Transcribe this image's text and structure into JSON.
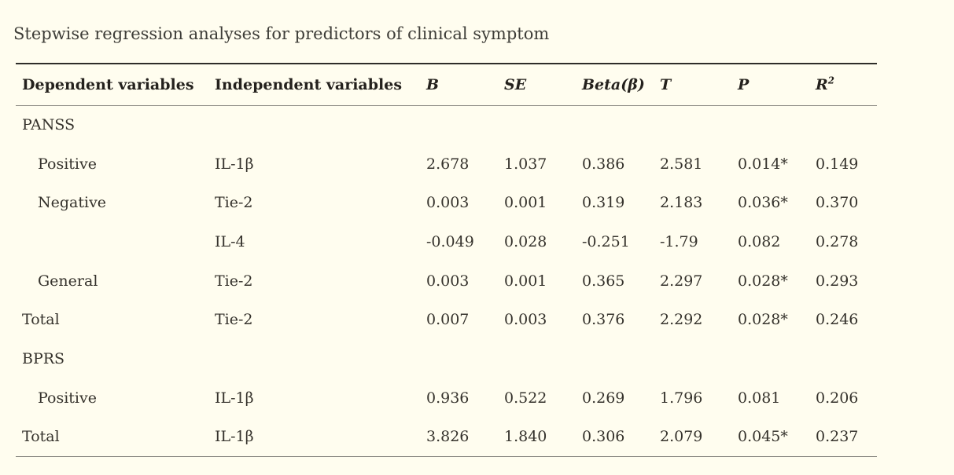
{
  "page": {
    "caption": "Stepwise regression analyses for predictors of clinical symptom",
    "colors": {
      "background": "#fffdef",
      "caption_text": "#3e3d38",
      "header_text": "#24211d",
      "body_text": "#35322c",
      "rule_top": "#2e2d29",
      "rule_mid": "#918f88",
      "rule_bottom": "#8b8a83"
    }
  },
  "table": {
    "columns": {
      "dependent": "Dependent variables",
      "independent": "Independent variables",
      "b": "B",
      "se": "SE",
      "beta": "Beta(β)",
      "t": "T",
      "p": "P",
      "r2_base": "R",
      "r2_sup": "2"
    },
    "rows": [
      {
        "dependent": "PANSS",
        "independent": "",
        "b": "",
        "se": "",
        "beta": "",
        "t": "",
        "p": "",
        "r2": ""
      },
      {
        "dependent": "Positive",
        "independent": "IL-1β",
        "b": "2.678",
        "se": "1.037",
        "beta": "0.386",
        "t": "2.581",
        "p": "0.014*",
        "r2": "0.149"
      },
      {
        "dependent": "Negative",
        "independent": "Tie-2",
        "b": "0.003",
        "se": "0.001",
        "beta": "0.319",
        "t": "2.183",
        "p": "0.036*",
        "r2": "0.370"
      },
      {
        "dependent": "",
        "independent": "IL-4",
        "b": "-0.049",
        "se": "0.028",
        "beta": "-0.251",
        "t": "-1.79",
        "p": "0.082",
        "r2": "0.278"
      },
      {
        "dependent": "General",
        "independent": "Tie-2",
        "b": "0.003",
        "se": "0.001",
        "beta": "0.365",
        "t": "2.297",
        "p": "0.028*",
        "r2": "0.293"
      },
      {
        "dependent": "Total",
        "independent": "Tie-2",
        "b": "0.007",
        "se": "0.003",
        "beta": "0.376",
        "t": "2.292",
        "p": "0.028*",
        "r2": "0.246"
      },
      {
        "dependent": "BPRS",
        "independent": "",
        "b": "",
        "se": "",
        "beta": "",
        "t": "",
        "p": "",
        "r2": ""
      },
      {
        "dependent": "Positive",
        "independent": "IL-1β",
        "b": "0.936",
        "se": "0.522",
        "beta": "0.269",
        "t": "1.796",
        "p": "0.081",
        "r2": "0.206"
      },
      {
        "dependent": "Total",
        "independent": "IL-1β",
        "b": "3.826",
        "se": "1.840",
        "beta": "0.306",
        "t": "2.079",
        "p": "0.045*",
        "r2": "0.237"
      }
    ]
  }
}
